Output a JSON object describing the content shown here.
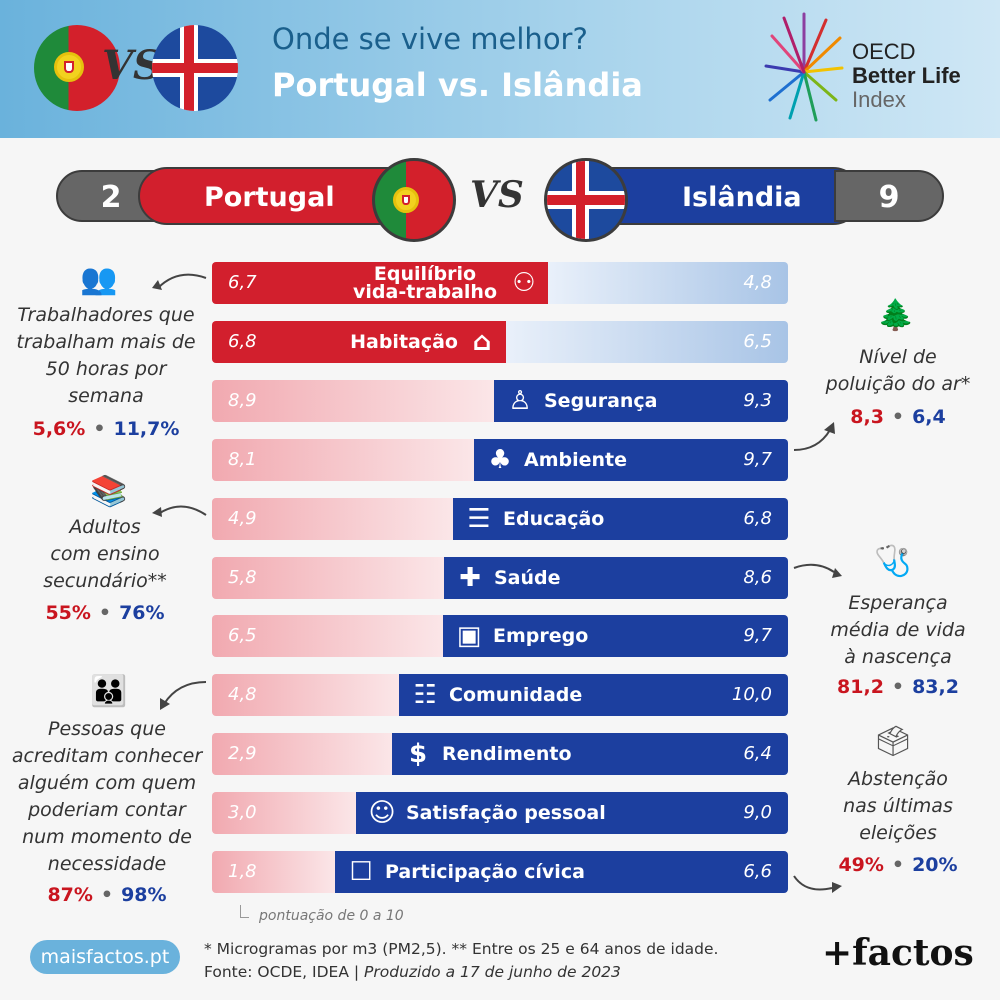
{
  "header": {
    "subtitle": "Onde se vive melhor?",
    "title": "Portugal vs. Islândia",
    "vs": "VS",
    "brand_logo": {
      "line1": "OECD",
      "line2": "Better Life",
      "line3": "Index"
    }
  },
  "versus": {
    "left": {
      "country": "Portugal",
      "wins": "2",
      "color": "#d21f2d"
    },
    "right": {
      "country": "Islândia",
      "wins": "9",
      "color": "#1c3f9f"
    },
    "vs": "VS"
  },
  "chart_data": {
    "type": "bar",
    "categories": [
      "Equilíbrio vida-trabalho",
      "Habitação",
      "Segurança",
      "Ambiente",
      "Educação",
      "Saúde",
      "Emprego",
      "Comunidade",
      "Rendimento",
      "Satisfação pessoal",
      "Participação cívica"
    ],
    "series": [
      {
        "name": "Portugal",
        "values": [
          6.7,
          6.8,
          8.9,
          8.1,
          4.9,
          5.8,
          6.5,
          4.8,
          2.9,
          3.0,
          1.8
        ],
        "labels": [
          "6,7",
          "6,8",
          "8,9",
          "8,1",
          "4,9",
          "5,8",
          "6,5",
          "4,8",
          "2,9",
          "3,0",
          "1,8"
        ]
      },
      {
        "name": "Islândia",
        "values": [
          4.8,
          6.5,
          9.3,
          9.7,
          6.8,
          8.6,
          9.7,
          10.0,
          6.4,
          9.0,
          6.6
        ],
        "labels": [
          "4,8",
          "6,5",
          "9,3",
          "9,7",
          "6,8",
          "8,6",
          "9,7",
          "10,0",
          "6,4",
          "9,0",
          "6,6"
        ]
      }
    ],
    "winner": [
      "pt",
      "pt",
      "is",
      "is",
      "is",
      "is",
      "is",
      "is",
      "is",
      "is",
      "is"
    ],
    "icons": [
      "work-life-icon",
      "house-icon",
      "security-guard-icon",
      "tree-icon",
      "books-icon",
      "doctor-icon",
      "briefcase-icon",
      "people-icon",
      "money-icon",
      "person-arms-up-icon",
      "ballot-box-icon"
    ],
    "scale_note": "pontuação de 0 a 10"
  },
  "side_notes": {
    "hours": {
      "text": [
        "Trabalhadores que",
        "trabalham mais de",
        "50 horas por",
        "semana"
      ],
      "pt": "5,6%",
      "is": "11,7%"
    },
    "education": {
      "text": [
        "Adultos",
        "com ensino",
        "secundário**"
      ],
      "pt": "55%",
      "is": "76%"
    },
    "community": {
      "text": [
        "Pessoas que",
        "acreditam conhecer",
        "alguém com quem",
        "poderiam contar",
        "num momento de",
        "necessidade"
      ],
      "pt": "87%",
      "is": "98%"
    },
    "pollution": {
      "text": [
        "Nível de",
        "poluição do ar*"
      ],
      "pt": "8,3",
      "is": "6,4"
    },
    "life_expectancy": {
      "text": [
        "Esperança",
        "média de vida",
        "à nascença"
      ],
      "pt": "81,2",
      "is": "83,2"
    },
    "abstention": {
      "text": [
        "Abstenção",
        "nas últimas",
        "eleições"
      ],
      "pt": "49%",
      "is": "20%"
    }
  },
  "footer": {
    "site": "maisfactos.pt",
    "note": "* Microgramas por m3 (PM2,5). ** Entre os 25 e 64 anos de idade.",
    "source": "Fonte: OCDE, IDEA | ",
    "produced": "Produzido a 17 de junho de 2023",
    "brand": "+factos"
  }
}
